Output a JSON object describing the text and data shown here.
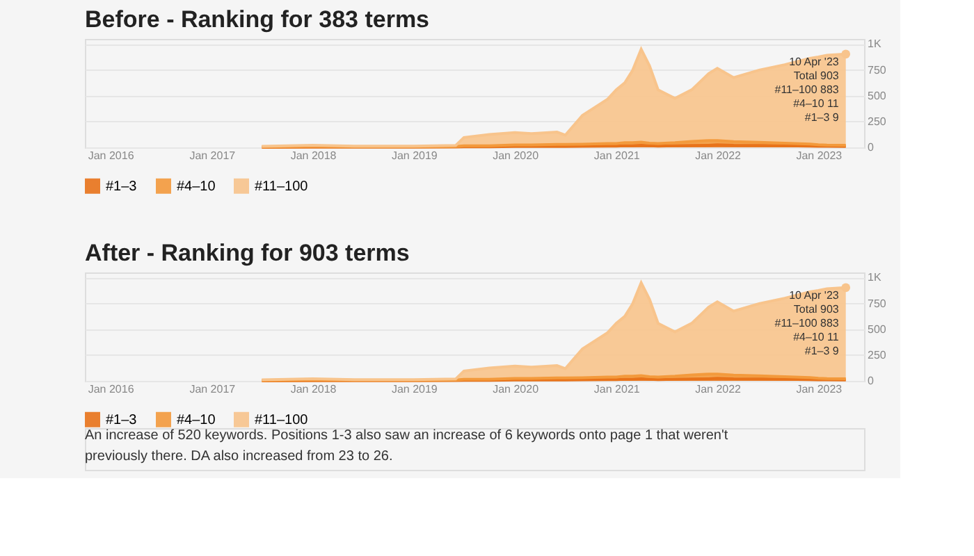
{
  "chart_data": [
    {
      "type": "area",
      "title": "Before - Ranking for 383 terms",
      "stacked": true,
      "legend": "bottom left",
      "grid": "y",
      "x": [
        "2017-07",
        "2018-01",
        "2018-06",
        "2019-01",
        "2019-06",
        "2019-07",
        "2019-10",
        "2020-01",
        "2020-03",
        "2020-06",
        "2020-07",
        "2020-09",
        "2020-12",
        "2021-01",
        "2021-02",
        "2021-03",
        "2021-04",
        "2021-05",
        "2021-06",
        "2021-08",
        "2021-10",
        "2021-12",
        "2022-01",
        "2022-03",
        "2022-06",
        "2022-09",
        "2022-12",
        "2023-01",
        "2023-02",
        "2023-04-10"
      ],
      "series": [
        {
          "name": "#1–3",
          "color": "#e8731a",
          "values": [
            0,
            2,
            2,
            2,
            3,
            5,
            5,
            8,
            8,
            8,
            8,
            10,
            12,
            12,
            15,
            15,
            20,
            15,
            12,
            15,
            18,
            20,
            25,
            20,
            18,
            15,
            12,
            10,
            10,
            9
          ]
        },
        {
          "name": "#4–10",
          "color": "#f39a3c",
          "values": [
            5,
            8,
            5,
            5,
            5,
            10,
            10,
            15,
            15,
            20,
            20,
            20,
            25,
            25,
            30,
            30,
            30,
            25,
            25,
            30,
            40,
            45,
            40,
            35,
            30,
            25,
            20,
            15,
            12,
            11
          ]
        },
        {
          "name": "#11–100",
          "color": "#f8c48c",
          "values": [
            5,
            10,
            5,
            5,
            10,
            80,
            110,
            120,
            110,
            120,
            90,
            280,
            430,
            520,
            580,
            700,
            900,
            750,
            520,
            430,
            500,
            650,
            700,
            620,
            700,
            760,
            830,
            850,
            870,
            883
          ]
        }
      ],
      "xlim": [
        "2015-10-01",
        "2023-06-15"
      ],
      "xticks": [
        {
          "value": "2016-01",
          "label": "Jan 2016"
        },
        {
          "value": "2017-01",
          "label": "Jan 2017"
        },
        {
          "value": "2018-01",
          "label": "Jan 2018"
        },
        {
          "value": "2019-01",
          "label": "Jan 2019"
        },
        {
          "value": "2020-01",
          "label": "Jan 2020"
        },
        {
          "value": "2021-01",
          "label": "Jan 2021"
        },
        {
          "value": "2022-01",
          "label": "Jan 2022"
        },
        {
          "value": "2023-01",
          "label": "Jan 2023"
        }
      ],
      "ylim": [
        0,
        1050
      ],
      "yticks": [
        0,
        250,
        500,
        750,
        {
          "value": 1000,
          "label": "1K"
        }
      ],
      "annotations": [
        {
          "text": "10 Apr '23\nTotal 903\n#11–100 883\n#4–10 11\n#1–3 9",
          "x": "2023-04-10",
          "y": 903
        }
      ]
    },
    {
      "type": "area",
      "title": "After - Ranking for 903 terms",
      "stacked": true,
      "legend": "bottom left",
      "grid": "y",
      "x": [
        "2017-07",
        "2018-01",
        "2018-06",
        "2019-01",
        "2019-06",
        "2019-07",
        "2019-10",
        "2020-01",
        "2020-03",
        "2020-06",
        "2020-07",
        "2020-09",
        "2020-12",
        "2021-01",
        "2021-02",
        "2021-03",
        "2021-04",
        "2021-05",
        "2021-06",
        "2021-08",
        "2021-10",
        "2021-12",
        "2022-01",
        "2022-03",
        "2022-06",
        "2022-09",
        "2022-12",
        "2023-01",
        "2023-02",
        "2023-04-10"
      ],
      "series": [
        {
          "name": "#1–3",
          "color": "#e8731a",
          "values": [
            0,
            2,
            2,
            2,
            3,
            5,
            5,
            8,
            8,
            8,
            8,
            10,
            12,
            12,
            15,
            15,
            20,
            15,
            12,
            15,
            18,
            20,
            25,
            20,
            18,
            15,
            12,
            10,
            10,
            9
          ]
        },
        {
          "name": "#4–10",
          "color": "#f39a3c",
          "values": [
            5,
            8,
            5,
            5,
            5,
            10,
            10,
            15,
            15,
            20,
            20,
            20,
            25,
            25,
            30,
            30,
            30,
            25,
            25,
            30,
            40,
            45,
            40,
            35,
            30,
            25,
            20,
            15,
            12,
            11
          ]
        },
        {
          "name": "#11–100",
          "color": "#f8c48c",
          "values": [
            5,
            10,
            5,
            5,
            10,
            80,
            110,
            120,
            110,
            120,
            90,
            280,
            430,
            520,
            580,
            700,
            900,
            750,
            520,
            430,
            500,
            650,
            700,
            620,
            700,
            760,
            830,
            850,
            870,
            883
          ]
        }
      ],
      "xlim": [
        "2015-10-01",
        "2023-06-15"
      ],
      "xticks": [
        {
          "value": "2016-01",
          "label": "Jan 2016"
        },
        {
          "value": "2017-01",
          "label": "Jan 2017"
        },
        {
          "value": "2018-01",
          "label": "Jan 2018"
        },
        {
          "value": "2019-01",
          "label": "Jan 2019"
        },
        {
          "value": "2020-01",
          "label": "Jan 2020"
        },
        {
          "value": "2021-01",
          "label": "Jan 2021"
        },
        {
          "value": "2022-01",
          "label": "Jan 2022"
        },
        {
          "value": "2023-01",
          "label": "Jan 2023"
        }
      ],
      "ylim": [
        0,
        1050
      ],
      "yticks": [
        0,
        250,
        500,
        750,
        {
          "value": 1000,
          "label": "1K"
        }
      ],
      "annotations": [
        {
          "text": "10 Apr '23\nTotal 903\n#11–100 883\n#4–10 11\n#1–3 9",
          "x": "2023-04-10",
          "y": 903
        },
        "An increase of 520 keywords. Positions 1-3 also saw an increase of 6 keywords onto page 1 that weren't previously there. DA also increased from 23 to 26."
      ]
    }
  ]
}
